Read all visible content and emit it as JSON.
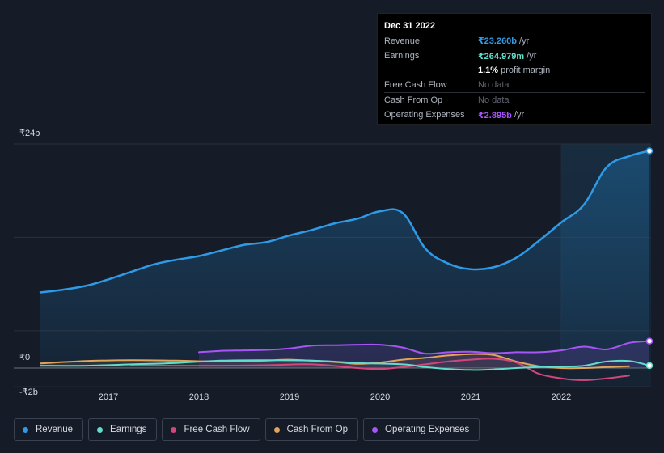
{
  "tooltip": {
    "date": "Dec 31 2022",
    "rows": [
      {
        "label": "Revenue",
        "value": "₹23.260b",
        "unit": "/yr",
        "color": "#2f9ae6"
      },
      {
        "label": "Earnings",
        "value": "₹264.979m",
        "unit": "/yr",
        "color": "#62dccb"
      },
      {
        "label": "",
        "value": "1.1%",
        "unit": "profit margin",
        "color": "#ffffff"
      },
      {
        "label": "Free Cash Flow",
        "value": "No data",
        "unit": "",
        "color": "#5f6672"
      },
      {
        "label": "Cash From Op",
        "value": "No data",
        "unit": "",
        "color": "#5f6672"
      },
      {
        "label": "Operating Expenses",
        "value": "₹2.895b",
        "unit": "/yr",
        "color": "#a855f7"
      }
    ]
  },
  "legend": [
    {
      "label": "Revenue",
      "color": "#2f9ae6"
    },
    {
      "label": "Earnings",
      "color": "#62dccb"
    },
    {
      "label": "Free Cash Flow",
      "color": "#d1477c"
    },
    {
      "label": "Cash From Op",
      "color": "#e0a45b"
    },
    {
      "label": "Operating Expenses",
      "color": "#a855f7"
    }
  ],
  "chart_data": {
    "type": "area",
    "y_unit": "₹ billions",
    "ylim": [
      -2,
      24
    ],
    "y_tick_labels": [
      "₹24b",
      "₹0",
      "-₹2b"
    ],
    "x_tick_labels": [
      "2017",
      "2018",
      "2019",
      "2020",
      "2021",
      "2022"
    ],
    "xlim": [
      2016.25,
      2023.0
    ],
    "highlight_from": 2022.0,
    "series": [
      {
        "name": "Revenue",
        "color": "#2f9ae6",
        "fill": true,
        "x": [
          2016.25,
          2016.5,
          2016.75,
          2017.0,
          2017.25,
          2017.5,
          2017.75,
          2018.0,
          2018.25,
          2018.5,
          2018.75,
          2019.0,
          2019.25,
          2019.5,
          2019.75,
          2020.0,
          2020.25,
          2020.5,
          2020.75,
          2021.0,
          2021.25,
          2021.5,
          2021.75,
          2022.0,
          2022.25,
          2022.5,
          2022.75,
          2023.0
        ],
        "y": [
          8.1,
          8.4,
          8.8,
          9.5,
          10.3,
          11.1,
          11.6,
          12.0,
          12.6,
          13.2,
          13.5,
          14.2,
          14.8,
          15.5,
          16.0,
          16.8,
          16.6,
          12.8,
          11.2,
          10.6,
          10.8,
          11.8,
          13.6,
          15.6,
          17.5,
          21.5,
          22.7,
          23.26
        ]
      },
      {
        "name": "Earnings",
        "color": "#62dccb",
        "fill": false,
        "x": [
          2016.25,
          2016.75,
          2017.25,
          2017.75,
          2018.25,
          2018.75,
          2019.25,
          2019.75,
          2020.25,
          2020.5,
          2020.75,
          2021.0,
          2021.25,
          2021.5,
          2021.75,
          2022.0,
          2022.25,
          2022.5,
          2022.75,
          2023.0
        ],
        "y": [
          0.25,
          0.25,
          0.4,
          0.55,
          0.8,
          0.85,
          0.8,
          0.55,
          0.4,
          0.1,
          -0.1,
          -0.2,
          -0.15,
          0.0,
          0.1,
          0.15,
          0.25,
          0.7,
          0.75,
          0.265
        ]
      },
      {
        "name": "Free Cash Flow",
        "color": "#d1477c",
        "fill": false,
        "x": [
          2017.25,
          2017.75,
          2018.25,
          2018.75,
          2019.25,
          2019.75,
          2020.0,
          2020.25,
          2020.5,
          2020.75,
          2021.0,
          2021.25,
          2021.5,
          2021.75,
          2022.0,
          2022.25,
          2022.5,
          2022.75
        ],
        "y": [
          0.3,
          0.25,
          0.25,
          0.3,
          0.4,
          0.0,
          -0.1,
          0.1,
          0.4,
          0.7,
          0.9,
          1.0,
          0.6,
          -0.6,
          -1.1,
          -1.3,
          -1.1,
          -0.8
        ]
      },
      {
        "name": "Cash From Op",
        "color": "#e0a45b",
        "fill": true,
        "x": [
          2016.25,
          2016.75,
          2017.25,
          2017.75,
          2018.25,
          2018.75,
          2019.0,
          2019.5,
          2019.75,
          2020.0,
          2020.25,
          2020.5,
          2020.75,
          2021.0,
          2021.25,
          2021.5,
          2021.75,
          2022.0,
          2022.25,
          2022.5,
          2022.75
        ],
        "y": [
          0.5,
          0.75,
          0.85,
          0.8,
          0.7,
          0.8,
          0.9,
          0.65,
          0.45,
          0.6,
          0.9,
          1.1,
          1.35,
          1.5,
          1.4,
          0.7,
          0.2,
          0.0,
          0.0,
          0.1,
          0.2
        ]
      },
      {
        "name": "Operating Expenses",
        "color": "#a855f7",
        "fill": true,
        "x": [
          2018.0,
          2018.25,
          2018.5,
          2018.75,
          2019.0,
          2019.25,
          2019.5,
          2019.75,
          2020.0,
          2020.25,
          2020.5,
          2020.75,
          2021.0,
          2021.25,
          2021.5,
          2021.75,
          2022.0,
          2022.25,
          2022.5,
          2022.75,
          2023.0
        ],
        "y": [
          1.7,
          1.85,
          1.9,
          1.95,
          2.1,
          2.4,
          2.45,
          2.5,
          2.5,
          2.2,
          1.55,
          1.7,
          1.75,
          1.6,
          1.7,
          1.7,
          1.9,
          2.3,
          2.0,
          2.7,
          2.895
        ]
      }
    ]
  }
}
